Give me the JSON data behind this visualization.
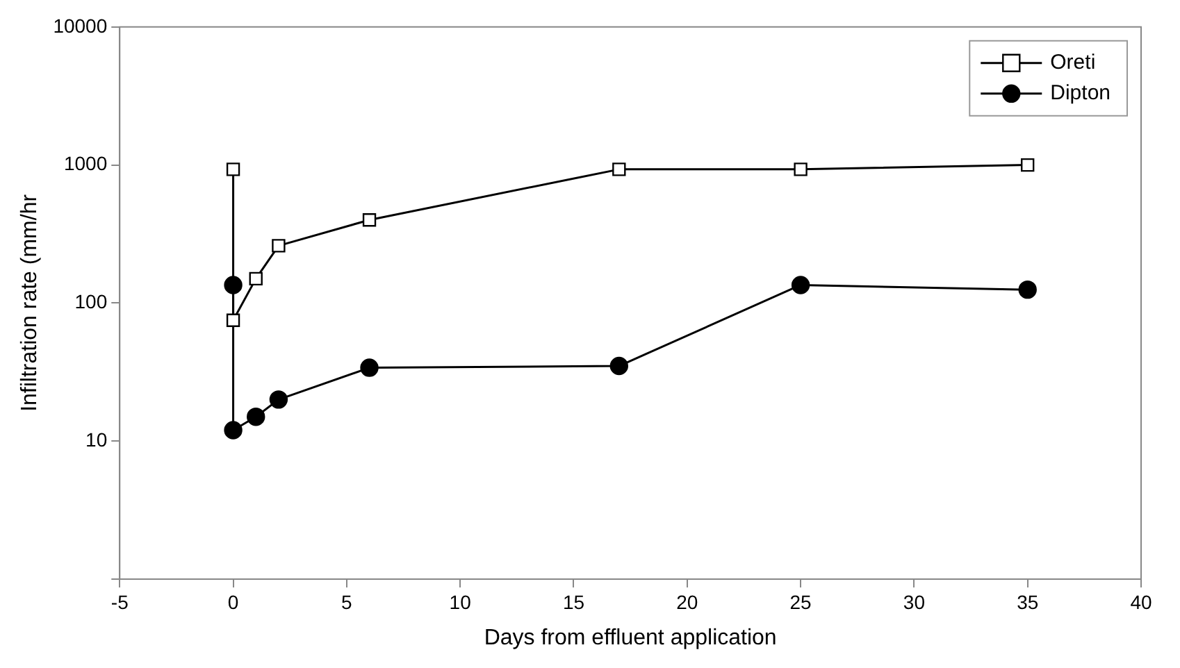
{
  "chart_data": {
    "type": "line",
    "xlabel": "Days from effluent application",
    "ylabel": "Infiltration rate (mm/hr",
    "log": "y",
    "xlim": [
      -5,
      40
    ],
    "xticks": [
      -5,
      0,
      5,
      10,
      15,
      20,
      25,
      30,
      35,
      40
    ],
    "ylim": [
      1,
      10000
    ],
    "yticks": [
      {
        "value": 1,
        "label": null
      },
      10,
      100,
      1000,
      10000
    ],
    "legend": "top right",
    "grid": false,
    "series": [
      {
        "name": "Oreti",
        "color": "#000000",
        "marker": "square",
        "x": [
          0,
          0,
          1,
          2,
          6,
          17,
          25,
          35
        ],
        "values": [
          930,
          75,
          150,
          260,
          400,
          930,
          930,
          1000
        ]
      },
      {
        "name": "Dipton",
        "color": "#000000",
        "marker": "circle",
        "x": [
          0,
          0,
          1,
          2,
          6,
          17,
          25,
          35
        ],
        "values": [
          135,
          12,
          15,
          20,
          34,
          35,
          135,
          125
        ]
      }
    ]
  }
}
